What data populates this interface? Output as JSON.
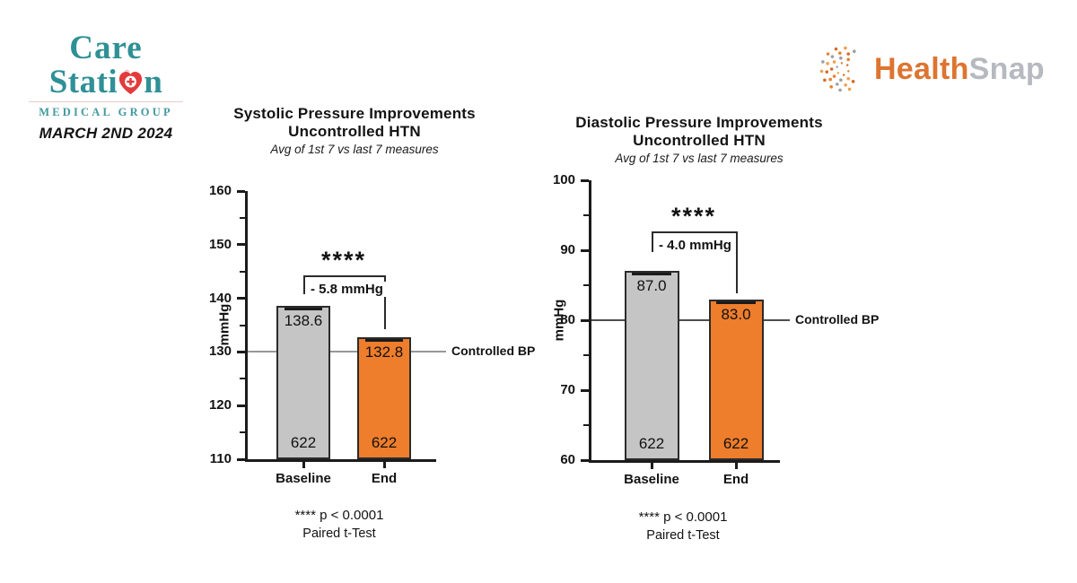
{
  "header": {
    "care_station": {
      "line1": "Care",
      "line2_pre": "Stati",
      "line2_post": "n",
      "heart_icon": "heart-cross-icon",
      "tagline": "MEDICAL GROUP",
      "date": "MARCH 2ND 2024",
      "teal": "#2f9096",
      "red": "#e23b3c"
    },
    "healthsnap": {
      "part1": "Health",
      "part2": "Snap",
      "icon": "dotted-globe-icon",
      "orange": "#dd7430",
      "gray": "#b6bac0"
    }
  },
  "chart_data": [
    {
      "type": "bar",
      "title": "Systolic Pressure Improvements",
      "title_line2": "Uncontrolled HTN",
      "subtitle": "Avg of 1st 7 vs last 7 measures",
      "ylabel": "mmHg",
      "ylim": [
        110,
        160
      ],
      "ytick_step": 10,
      "yminor_step": 5,
      "grid": false,
      "categories": [
        "Baseline",
        "End"
      ],
      "values": [
        138.6,
        132.8
      ],
      "bar_value_labels": [
        "138.6",
        "132.8"
      ],
      "n_labels": [
        "622",
        "622"
      ],
      "bar_colors": [
        "#c5c5c5",
        "#ee7d2c"
      ],
      "reference_line": {
        "value": 130,
        "label": "Controlled BP"
      },
      "significance": {
        "stars": "****",
        "delta_label": "- 5.8 mmHg"
      },
      "footnote1": "**** p < 0.0001",
      "footnote2": "Paired t-Test"
    },
    {
      "type": "bar",
      "title": "Diastolic Pressure Improvements",
      "title_line2": "Uncontrolled HTN",
      "subtitle": "Avg of 1st 7 vs last 7 measures",
      "ylabel": "mmHg",
      "ylim": [
        60,
        100
      ],
      "ytick_step": 10,
      "yminor_step": 5,
      "grid": false,
      "categories": [
        "Baseline",
        "End"
      ],
      "values": [
        87.0,
        83.0
      ],
      "bar_value_labels": [
        "87.0",
        "83.0"
      ],
      "n_labels": [
        "622",
        "622"
      ],
      "bar_colors": [
        "#c5c5c5",
        "#ee7d2c"
      ],
      "reference_line": {
        "value": 80,
        "label": "Controlled BP"
      },
      "significance": {
        "stars": "****",
        "delta_label": "- 4.0 mmHg"
      },
      "footnote1": "**** p < 0.0001",
      "footnote2": "Paired t-Test"
    }
  ]
}
